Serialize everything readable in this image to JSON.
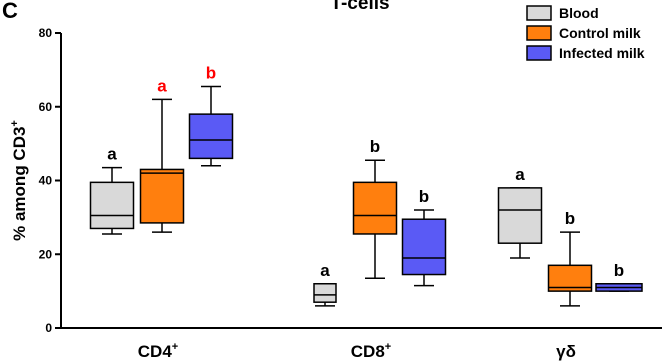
{
  "panel_label": "C",
  "chart_data": {
    "type": "box",
    "title": "T-cells",
    "xlabel": "",
    "ylabel": "% among CD3",
    "ylabel_superscript": "+",
    "ylim": [
      0,
      80
    ],
    "yticks": [
      0,
      20,
      40,
      60,
      80
    ],
    "grid": false,
    "legend_position": "top-right",
    "categories": [
      {
        "label": "CD4",
        "sup": "+"
      },
      {
        "label": "CD8",
        "sup": "+"
      },
      {
        "label": "γδ",
        "sup": ""
      }
    ],
    "series": [
      {
        "name": "Blood",
        "color": "#d9d9d9",
        "boxes": [
          {
            "min": 25.5,
            "q1": 27,
            "median": 30.5,
            "q3": 39.5,
            "max": 43.5,
            "label": "a",
            "label_color": "#000000"
          },
          {
            "min": 6,
            "q1": 7,
            "median": 9,
            "q3": 12,
            "max": 12,
            "label": "a",
            "label_color": "#000000"
          },
          {
            "min": 19,
            "q1": 23,
            "median": 32,
            "q3": 38,
            "max": 38,
            "label": "a",
            "label_color": "#000000"
          }
        ]
      },
      {
        "name": "Control milk",
        "color": "#ff7f0e",
        "boxes": [
          {
            "min": 26,
            "q1": 28.5,
            "median": 42,
            "q3": 43,
            "max": 62,
            "label": "a",
            "label_color": "#ff0000"
          },
          {
            "min": 13.5,
            "q1": 25.5,
            "median": 30.5,
            "q3": 39.5,
            "max": 45.5,
            "label": "b",
            "label_color": "#000000"
          },
          {
            "min": 6,
            "q1": 10,
            "median": 11,
            "q3": 17,
            "max": 26,
            "label": "b",
            "label_color": "#000000"
          }
        ]
      },
      {
        "name": "Infected milk",
        "color": "#5a5af5",
        "boxes": [
          {
            "min": 44,
            "q1": 46,
            "median": 51,
            "q3": 58,
            "max": 65.5,
            "label": "b",
            "label_color": "#ff0000"
          },
          {
            "min": 11.5,
            "q1": 14.5,
            "median": 19,
            "q3": 29.5,
            "max": 32,
            "label": "b",
            "label_color": "#000000"
          },
          {
            "min": 10,
            "q1": 10,
            "median": 11,
            "q3": 12,
            "max": 12,
            "label": "b",
            "label_color": "#000000"
          }
        ]
      }
    ]
  }
}
